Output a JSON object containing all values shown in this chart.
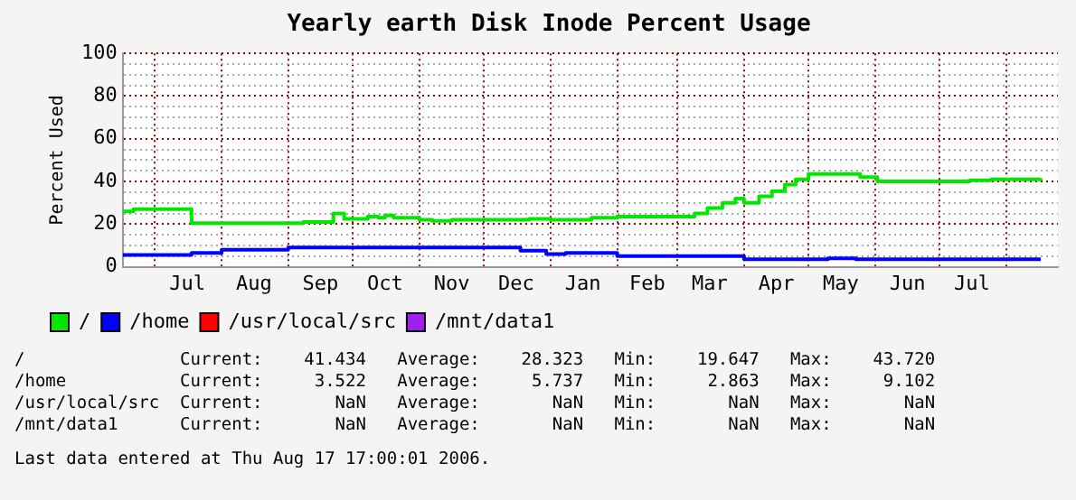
{
  "chart_data": {
    "type": "step",
    "title": "Yearly earth Disk Inode Percent Usage",
    "ylabel": "Percent Used",
    "xlim": [
      "2005-06-16",
      "2006-08-25"
    ],
    "xticks": [
      {
        "value": "2005-07-01",
        "label": null
      },
      {
        "value": "2005-07-16",
        "label": "Jul"
      },
      {
        "value": "2005-08-01",
        "label": null
      },
      {
        "value": "2005-08-16",
        "label": "Aug"
      },
      {
        "value": "2005-09-01",
        "label": null
      },
      {
        "value": "2005-09-16",
        "label": "Sep"
      },
      {
        "value": "2005-10-01",
        "label": null
      },
      {
        "value": "2005-10-16",
        "label": "Oct"
      },
      {
        "value": "2005-11-01",
        "label": null
      },
      {
        "value": "2005-11-16",
        "label": "Nov"
      },
      {
        "value": "2005-12-01",
        "label": null
      },
      {
        "value": "2005-12-16",
        "label": "Dec"
      },
      {
        "value": "2006-01-01",
        "label": null
      },
      {
        "value": "2006-01-16",
        "label": "Jan"
      },
      {
        "value": "2006-02-01",
        "label": null
      },
      {
        "value": "2006-02-15",
        "label": "Feb"
      },
      {
        "value": "2006-03-01",
        "label": null
      },
      {
        "value": "2006-03-16",
        "label": "Mar"
      },
      {
        "value": "2006-04-01",
        "label": null
      },
      {
        "value": "2006-04-16",
        "label": "Apr"
      },
      {
        "value": "2006-05-01",
        "label": null
      },
      {
        "value": "2006-05-16",
        "label": "May"
      },
      {
        "value": "2006-06-01",
        "label": null
      },
      {
        "value": "2006-06-16",
        "label": "Jun"
      },
      {
        "value": "2006-07-01",
        "label": null
      },
      {
        "value": "2006-07-16",
        "label": "Jul"
      },
      {
        "value": "2006-08-01",
        "label": null
      }
    ],
    "ylim": [
      0,
      100
    ],
    "yticks": [
      0,
      {
        "value": 5,
        "label": null
      },
      {
        "value": 10,
        "label": null
      },
      {
        "value": 15,
        "label": null
      },
      20,
      {
        "value": 25,
        "label": null
      },
      {
        "value": 30,
        "label": null
      },
      {
        "value": 35,
        "label": null
      },
      40,
      {
        "value": 45,
        "label": null
      },
      {
        "value": 50,
        "label": null
      },
      {
        "value": 55,
        "label": null
      },
      60,
      {
        "value": 65,
        "label": null
      },
      {
        "value": 70,
        "label": null
      },
      {
        "value": 75,
        "label": null
      },
      80,
      {
        "value": 85,
        "label": null
      },
      {
        "value": 90,
        "label": null
      },
      {
        "value": 95,
        "label": null
      },
      100
    ],
    "grid": true,
    "legend": "bottom",
    "marker": "none",
    "series": [
      {
        "name": "/",
        "color": "#00e800",
        "x": [
          "2005-06-16",
          "2005-06-21",
          "2005-07-18",
          "2005-09-08",
          "2005-09-22",
          "2005-09-27",
          "2005-10-08",
          "2005-10-13",
          "2005-10-16",
          "2005-10-20",
          "2005-11-01",
          "2005-11-07",
          "2005-11-16",
          "2005-12-22",
          "2006-01-01",
          "2006-01-20",
          "2006-02-01",
          "2006-03-09",
          "2006-03-15",
          "2006-03-22",
          "2006-03-28",
          "2006-04-01",
          "2006-04-08",
          "2006-04-14",
          "2006-04-20",
          "2006-04-25",
          "2006-05-01",
          "2006-05-25",
          "2006-06-02",
          "2006-07-15",
          "2006-07-25",
          "2006-08-17"
        ],
        "values": [
          26,
          27,
          20.5,
          21,
          25,
          22.5,
          23.5,
          23,
          24,
          23,
          22,
          21.5,
          22,
          22.5,
          22,
          23,
          23.5,
          25,
          27.5,
          30,
          32,
          30,
          33,
          35.5,
          38.5,
          41,
          43.5,
          42,
          40,
          40.5,
          41,
          41.5
        ]
      },
      {
        "name": "/home",
        "color": "#0000ff",
        "x": [
          "2005-06-16",
          "2005-07-18",
          "2005-08-01",
          "2005-09-01",
          "2005-12-18",
          "2005-12-30",
          "2006-01-08",
          "2006-02-01",
          "2006-04-01",
          "2006-05-10",
          "2006-05-23",
          "2006-08-17"
        ],
        "values": [
          5.5,
          6.5,
          8,
          9,
          7.5,
          6,
          6.5,
          5,
          3.5,
          4,
          3.5,
          3.5
        ]
      },
      {
        "name": "/usr/local/src",
        "color": "#ff0000"
      },
      {
        "name": "/mnt/data1",
        "color": "#a020f0"
      }
    ],
    "annotations": [
      "/               Current:    41.434   Average:    28.323   Min:    19.647   Max:    43.720",
      "/home           Current:     3.522   Average:     5.737   Min:     2.863   Max:     9.102",
      "/usr/local/src  Current:       NaN   Average:       NaN   Min:       NaN   Max:       NaN",
      "/mnt/data1      Current:       NaN   Average:       NaN   Min:       NaN   Max:       NaN",
      "Last data entered at Thu Aug 17 17:00:01 2006."
    ]
  }
}
